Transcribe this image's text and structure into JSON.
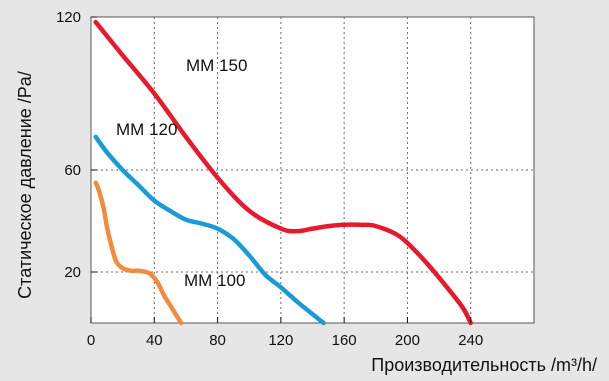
{
  "chart_data": {
    "type": "line",
    "xlabel": "Производительность  /m³/h/",
    "ylabel": "Статическое давление /Pa/",
    "xlim": [
      0,
      280
    ],
    "ylim": [
      0,
      120
    ],
    "x_ticks": [
      "0",
      "40",
      "80",
      "120",
      "160",
      "200",
      "240"
    ],
    "y_ticks": [
      "20",
      "60",
      "120"
    ],
    "grid": true,
    "series": [
      {
        "name": "MM 150",
        "color": "#e8192c",
        "x": [
          3,
          20,
          40,
          60,
          80,
          100,
          120,
          130,
          140,
          150,
          160,
          170,
          180,
          195,
          210,
          225,
          235,
          240
        ],
        "y": [
          118,
          105,
          90,
          73,
          57,
          44,
          37,
          36,
          37,
          38,
          38.5,
          38.5,
          38,
          34,
          25,
          14,
          6,
          0
        ]
      },
      {
        "name": "MM 120",
        "color": "#1a9ad6",
        "x": [
          3,
          10,
          20,
          30,
          40,
          50,
          60,
          70,
          80,
          90,
          100,
          110,
          120,
          130,
          140,
          147
        ],
        "y": [
          73,
          67,
          60,
          54,
          48,
          44,
          40.5,
          39,
          37,
          33,
          26.5,
          19,
          14,
          8.5,
          3.5,
          0
        ]
      },
      {
        "name": "MM 100",
        "color": "#f28c3c",
        "x": [
          3,
          5,
          8,
          10,
          13,
          16,
          20,
          25,
          30,
          35,
          38,
          42,
          46,
          50,
          54,
          57
        ],
        "y": [
          55,
          52,
          45,
          38,
          30,
          24,
          21.5,
          20.5,
          20.5,
          20,
          19,
          16,
          11,
          7,
          3,
          0
        ]
      }
    ]
  }
}
